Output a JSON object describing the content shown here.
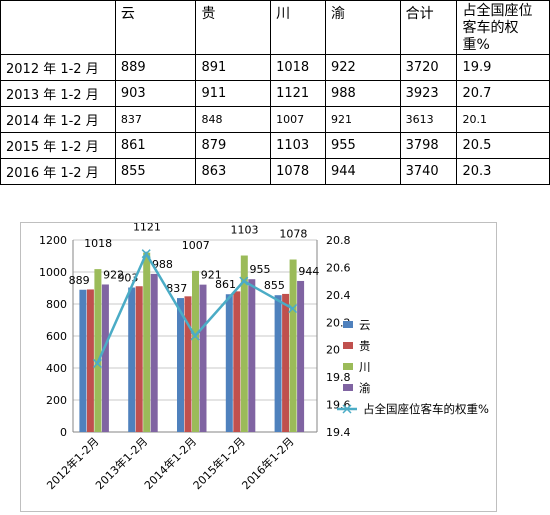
{
  "table": {
    "headers": [
      "",
      "云",
      "贵",
      "川",
      "渝",
      "合计",
      "占全国座位客车的权重%"
    ],
    "rows": [
      {
        "label": "2012 年 1-2 月",
        "cells": [
          "889",
          "891",
          "1018",
          "922",
          "3720",
          "19.9"
        ],
        "small": false
      },
      {
        "label": "2013 年 1-2 月",
        "cells": [
          "903",
          "911",
          "1121",
          "988",
          "3923",
          "20.7"
        ],
        "small": false
      },
      {
        "label": "2014 年 1-2 月",
        "cells": [
          "837",
          "848",
          "1007",
          "921",
          "3613",
          "20.1"
        ],
        "small": true
      },
      {
        "label": "2015 年 1-2 月",
        "cells": [
          "861",
          "879",
          "1103",
          "955",
          "3798",
          "20.5"
        ],
        "small": false
      },
      {
        "label": "2016 年 1-2 月",
        "cells": [
          "855",
          "863",
          "1078",
          "944",
          "3740",
          "20.3"
        ],
        "small": false
      }
    ]
  },
  "chart_data": {
    "type": "bar",
    "categories": [
      "2012年1-2月",
      "2013年1-2月",
      "2014年1-2月",
      "2015年1-2月",
      "2016年1-2月"
    ],
    "series": [
      {
        "name": "云",
        "type": "bar",
        "color": "#4f81bd",
        "values": [
          889,
          903,
          837,
          861,
          855
        ]
      },
      {
        "name": "贵",
        "type": "bar",
        "color": "#c0504d",
        "values": [
          891,
          911,
          848,
          879,
          863
        ]
      },
      {
        "name": "川",
        "type": "bar",
        "color": "#9bbb59",
        "values": [
          1018,
          1121,
          1007,
          1103,
          1078
        ]
      },
      {
        "name": "渝",
        "type": "bar",
        "color": "#8064a2",
        "values": [
          922,
          988,
          921,
          955,
          944
        ]
      },
      {
        "name": "占全国座位客车的权重%",
        "type": "line",
        "axis": "right",
        "color": "#4bacc6",
        "values": [
          19.9,
          20.7,
          20.1,
          20.5,
          20.3
        ]
      }
    ],
    "data_labels": {
      "2012年1-2月": [
        "889",
        "1018",
        "922"
      ],
      "2013年1-2月": [
        "903",
        "1121",
        "988"
      ],
      "2014年1-2月": [
        "837",
        "1007",
        "921"
      ],
      "2015年1-2月": [
        "861",
        "1103",
        "955"
      ],
      "2016年1-2月": [
        "855",
        "1078",
        "944"
      ]
    },
    "ylim_left": [
      0,
      1200
    ],
    "yticks_left": [
      "0",
      "200",
      "400",
      "600",
      "800",
      "1000",
      "1200"
    ],
    "ylim_right": [
      19.4,
      20.8
    ],
    "yticks_right": [
      "19.4",
      "19.6",
      "19.8",
      "20",
      "20.2",
      "20.4",
      "20.6",
      "20.8"
    ],
    "title": "",
    "xlabel": "",
    "ylabel": "",
    "legend_position": "right",
    "grid": "horizontal"
  }
}
